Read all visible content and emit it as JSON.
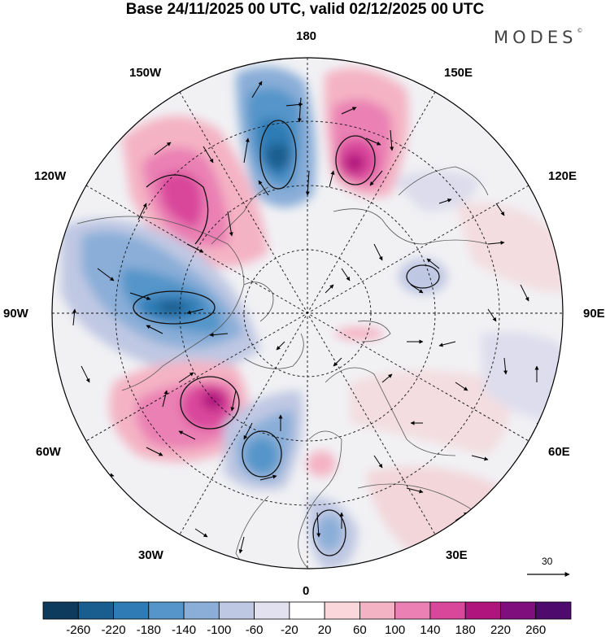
{
  "header": {
    "title": "Base 24/11/2025 00 UTC, valid 02/12/2025 00 UTC",
    "brand": "MODES",
    "brand_mark": "©"
  },
  "map": {
    "projection": "north-polar-stereographic",
    "field": "geopotential height anomaly with wind vectors",
    "longitude_labels": {
      "lon_180": "180",
      "lon_150e": "150E",
      "lon_120e": "120E",
      "lon_90e": "90E",
      "lon_60e": "60E",
      "lon_30e": "30E",
      "lon_0": "0",
      "lon_30w": "30W",
      "lon_60w": "60W",
      "lon_90w": "90W",
      "lon_120w": "120W",
      "lon_150w": "150W"
    },
    "vector_scale_label": "30"
  },
  "colorbar": {
    "ticks": [
      "-260",
      "-220",
      "-180",
      "-140",
      "-100",
      "-60",
      "-20",
      "20",
      "60",
      "100",
      "140",
      "180",
      "220",
      "260"
    ],
    "colors": {
      "c0": "#0d3b5e",
      "c1": "#1a5e8f",
      "c2": "#2f7bb5",
      "c3": "#5595c9",
      "c4": "#8aaed8",
      "c5": "#bfc8e3",
      "c6": "#e1e1ef",
      "c7": "#ffffff",
      "c8": "#f9d7da",
      "c9": "#f4b3c4",
      "c10": "#ea80b4",
      "c11": "#d9479b",
      "c12": "#b0157e",
      "c13": "#7f0f7d",
      "c14": "#4f0a6e"
    }
  }
}
